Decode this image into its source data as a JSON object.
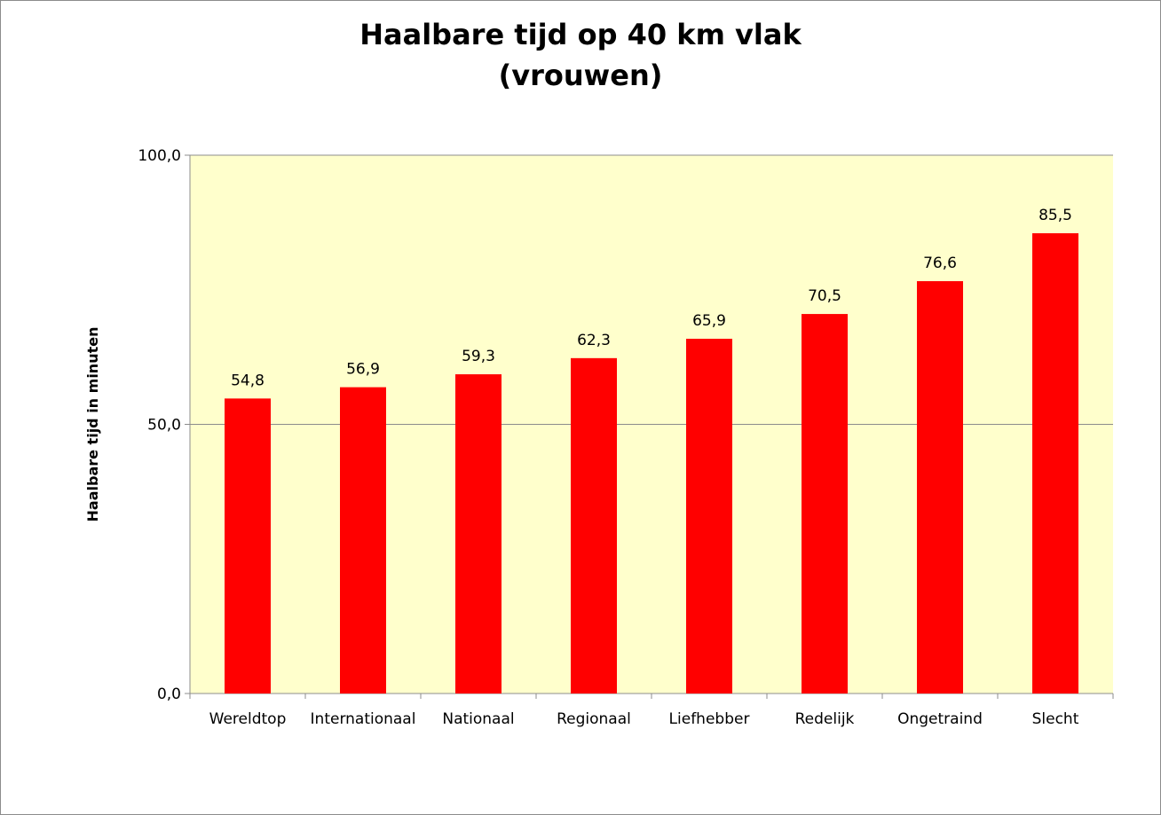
{
  "chart_data": {
    "type": "bar",
    "title_lines": [
      "Haalbare tijd op 40 km vlak",
      "(vrouwen)"
    ],
    "ylabel": "Haalbare tijd in minuten",
    "xlabel": "",
    "categories": [
      "Wereldtop",
      "Internationaal",
      "Nationaal",
      "Regionaal",
      "Liefhebber",
      "Redelijk",
      "Ongetraind",
      "Slecht"
    ],
    "values": [
      54.8,
      56.9,
      59.3,
      62.3,
      65.9,
      70.5,
      76.6,
      85.5
    ],
    "data_labels": [
      "54,8",
      "56,9",
      "59,3",
      "62,3",
      "65,9",
      "70,5",
      "76,6",
      "85,5"
    ],
    "ylim": [
      0,
      100
    ],
    "yticks": [
      0,
      50,
      100
    ],
    "ytick_labels": [
      "0,0",
      "50,0",
      "100,0"
    ],
    "grid": "horizontal",
    "legend": "none",
    "colors": {
      "bar": "#ff0000",
      "plot_background": "#ffffcc",
      "gridline": "#8c8c8c",
      "axis": "#8c8c8c"
    }
  }
}
